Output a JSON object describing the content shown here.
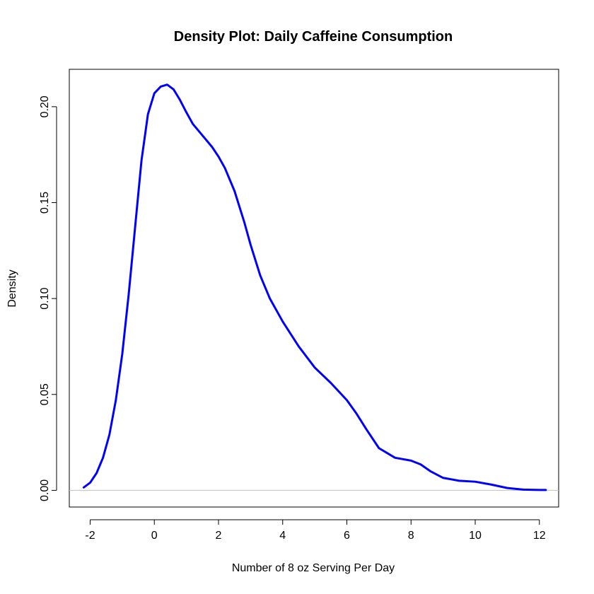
{
  "chart_data": {
    "type": "line",
    "title": "Density Plot: Daily Caffeine Consumption",
    "xlabel": "Number of 8 oz Serving Per Day",
    "ylabel": "Density",
    "xlim": [
      -2.65,
      12.6
    ],
    "ylim": [
      -0.0087,
      0.2195
    ],
    "x_ticks": [
      -2,
      0,
      2,
      4,
      6,
      8,
      10,
      12
    ],
    "x_tick_labels": [
      "-2",
      "0",
      "2",
      "4",
      "6",
      "8",
      "10",
      "12"
    ],
    "y_ticks": [
      0.0,
      0.05,
      0.1,
      0.15,
      0.2
    ],
    "y_tick_labels": [
      "0.00",
      "0.05",
      "0.10",
      "0.15",
      "0.20"
    ],
    "grid": false,
    "baseline": {
      "y": 0,
      "color": "#c0c0c0"
    },
    "series": [
      {
        "color": "#0000ff",
        "x": [
          -2.2,
          -2.0,
          -1.8,
          -1.6,
          -1.4,
          -1.2,
          -1.0,
          -0.8,
          -0.6,
          -0.4,
          -0.2,
          0.0,
          0.2,
          0.4,
          0.6,
          0.8,
          1.0,
          1.2,
          1.5,
          1.8,
          2.0,
          2.2,
          2.5,
          2.8,
          3.0,
          3.3,
          3.6,
          4.0,
          4.5,
          5.0,
          5.5,
          6.0,
          6.3,
          6.6,
          7.0,
          7.5,
          8.0,
          8.3,
          8.6,
          9.0,
          9.5,
          10.0,
          10.5,
          11.0,
          11.5,
          12.0,
          12.2
        ],
        "y": [
          0.0015,
          0.004,
          0.009,
          0.017,
          0.029,
          0.047,
          0.071,
          0.102,
          0.137,
          0.172,
          0.196,
          0.207,
          0.2105,
          0.2115,
          0.209,
          0.2035,
          0.197,
          0.191,
          0.185,
          0.179,
          0.174,
          0.168,
          0.156,
          0.14,
          0.128,
          0.112,
          0.1,
          0.088,
          0.075,
          0.064,
          0.056,
          0.047,
          0.04,
          0.032,
          0.022,
          0.017,
          0.0155,
          0.0135,
          0.01,
          0.0065,
          0.005,
          0.0045,
          0.003,
          0.0012,
          0.0004,
          0.0002,
          0.0002
        ]
      }
    ]
  }
}
